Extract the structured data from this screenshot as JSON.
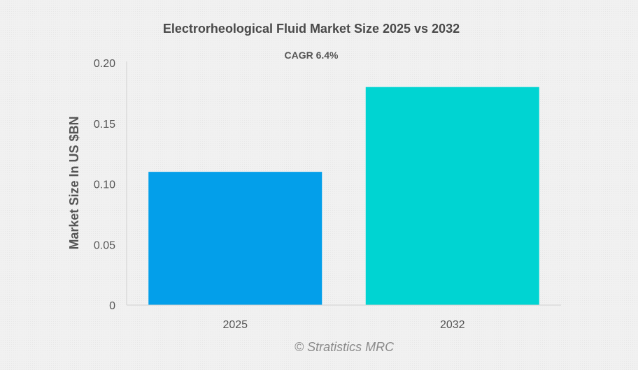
{
  "chart_data": {
    "type": "bar",
    "title": "Electrorheological Fluid Market Size 2025 vs 2032",
    "subtitle": "CAGR 6.4%",
    "xlabel": "",
    "ylabel": "Market Size In US $BN",
    "categories": [
      "2025",
      "2032"
    ],
    "values": [
      0.11,
      0.18
    ],
    "bar_colors": [
      "#039fea",
      "#00d4d2"
    ],
    "ylim": [
      0,
      0.2
    ],
    "yticks": [
      0,
      0.05,
      0.1,
      0.15,
      0.2
    ],
    "ytick_labels": [
      "0",
      "0.05",
      "0.10",
      "0.15",
      "0.20"
    ],
    "grid": false,
    "legend": "none"
  },
  "watermark": "© Stratistics MRC",
  "colors": {
    "title": "#4a4a4a",
    "axis_text": "#555555",
    "axis_line": "#d0d0d0"
  }
}
